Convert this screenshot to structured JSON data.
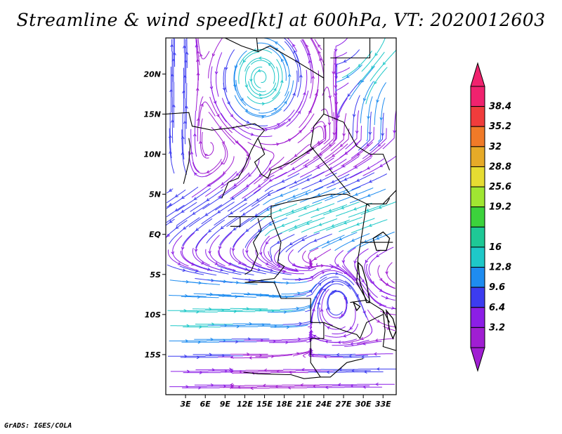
{
  "title": "Streamline & wind speed[kt] at 600hPa, VT: 2020012603",
  "footer": "GrADS: IGES/COLA",
  "map": {
    "lon_range": [
      0,
      35
    ],
    "lat_range": [
      -20,
      24.5
    ],
    "lat_ticks": [
      {
        "lat": 20,
        "label": "20N"
      },
      {
        "lat": 15,
        "label": "15N"
      },
      {
        "lat": 10,
        "label": "10N"
      },
      {
        "lat": 5,
        "label": "5N"
      },
      {
        "lat": 0,
        "label": "EQ"
      },
      {
        "lat": -5,
        "label": "5S"
      },
      {
        "lat": -10,
        "label": "10S"
      },
      {
        "lat": -15,
        "label": "15S"
      }
    ],
    "lon_ticks": [
      {
        "lon": 3,
        "label": "3E"
      },
      {
        "lon": 6,
        "label": "6E"
      },
      {
        "lon": 9,
        "label": "9E"
      },
      {
        "lon": 12,
        "label": "12E"
      },
      {
        "lon": 15,
        "label": "15E"
      },
      {
        "lon": 18,
        "label": "18E"
      },
      {
        "lon": 21,
        "label": "21E"
      },
      {
        "lon": 24,
        "label": "24E"
      },
      {
        "lon": 27,
        "label": "27E"
      },
      {
        "lon": 30,
        "label": "30E"
      },
      {
        "lon": 33,
        "label": "33E"
      }
    ]
  },
  "colorbar": {
    "levels": [
      {
        "label": "38.4",
        "color": "#f0226e"
      },
      {
        "label": "35.2",
        "color": "#f03c3c"
      },
      {
        "label": "32",
        "color": "#f07a28"
      },
      {
        "label": "28.8",
        "color": "#e6aa28"
      },
      {
        "label": "25.6",
        "color": "#e6dc32"
      },
      {
        "label": "19.2",
        "color": "#a0e632"
      },
      {
        "label": "",
        "color": "#3cd23c"
      },
      {
        "label": "16",
        "color": "#1ec896"
      },
      {
        "label": "12.8",
        "color": "#1ec8c8"
      },
      {
        "label": "9.6",
        "color": "#1e8cf0"
      },
      {
        "label": "6.4",
        "color": "#3c3cf0"
      },
      {
        "label": "3.2",
        "color": "#8c1ee6"
      },
      {
        "label": "",
        "color": "#a01ed2"
      }
    ]
  }
}
